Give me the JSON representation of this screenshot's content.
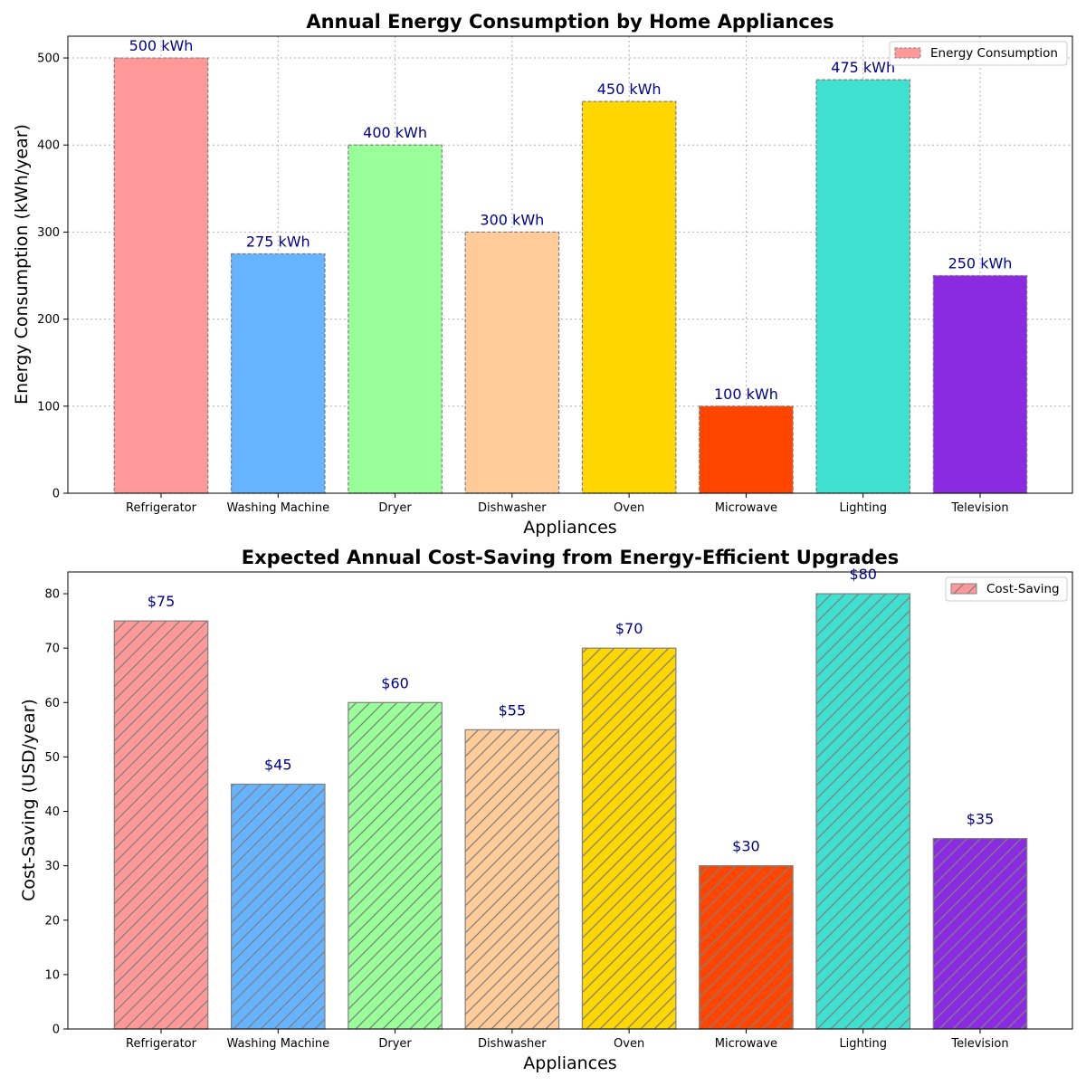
{
  "chart_data": [
    {
      "type": "bar",
      "title": "Annual Energy Consumption by Home Appliances",
      "xlabel": "Appliances",
      "ylabel": "Energy Consumption (kWh/year)",
      "categories": [
        "Refrigerator",
        "Washing Machine",
        "Dryer",
        "Dishwasher",
        "Oven",
        "Microwave",
        "Lighting",
        "Television"
      ],
      "series": [
        {
          "name": "Energy Consumption",
          "values": [
            500,
            275,
            400,
            300,
            450,
            100,
            475,
            250
          ],
          "labels": [
            "500 kWh",
            "275 kWh",
            "400 kWh",
            "300 kWh",
            "450 kWh",
            "100 kWh",
            "475 kWh",
            "250 kWh"
          ]
        }
      ],
      "colors": [
        "#FF9999",
        "#66B3FF",
        "#99FF99",
        "#FFCC99",
        "#FFD700",
        "#FF4500",
        "#40E0D0",
        "#8A2BE2"
      ],
      "edge_color": "#808080",
      "edge_style": "dashed",
      "hatch": "none",
      "label_color": "#00008B",
      "ylim": [
        0,
        525
      ],
      "yticks": [
        0,
        100,
        200,
        300,
        400,
        500
      ],
      "grid": true,
      "legend_position": "top-right"
    },
    {
      "type": "bar",
      "title": "Expected Annual Cost-Saving from Energy-Efficient Upgrades",
      "xlabel": "Appliances",
      "ylabel": "Cost-Saving (USD/year)",
      "categories": [
        "Refrigerator",
        "Washing Machine",
        "Dryer",
        "Dishwasher",
        "Oven",
        "Microwave",
        "Lighting",
        "Television"
      ],
      "series": [
        {
          "name": "Cost-Saving",
          "values": [
            75,
            45,
            60,
            55,
            70,
            30,
            80,
            35
          ],
          "labels": [
            "$75",
            "$45",
            "$60",
            "$55",
            "$70",
            "$30",
            "$80",
            "$35"
          ]
        }
      ],
      "colors": [
        "#FF9999",
        "#66B3FF",
        "#99FF99",
        "#FFCC99",
        "#FFD700",
        "#FF4500",
        "#40E0D0",
        "#8A2BE2"
      ],
      "edge_color": "#808080",
      "edge_style": "solid",
      "hatch": "diagonal",
      "label_color": "#00008B",
      "ylim": [
        0,
        84
      ],
      "yticks": [
        0,
        10,
        20,
        30,
        40,
        50,
        60,
        70,
        80
      ],
      "grid": false,
      "legend_position": "top-right"
    }
  ]
}
